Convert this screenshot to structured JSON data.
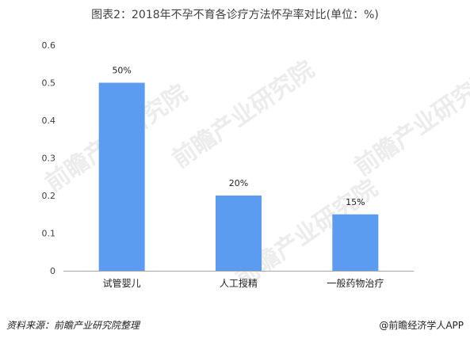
{
  "title": "图表2：2018年不孕不育各诊疗方法怀孕率对比(单位：%)",
  "footer": {
    "source": "资料来源：前瞻产业研究院整理",
    "brand": "@前瞻经济学人APP"
  },
  "watermark": {
    "text": "前瞻产业研究院"
  },
  "colors": {
    "bar": "#5b9bf0",
    "axis": "#a6a6a6"
  },
  "chart_data": {
    "type": "bar",
    "categories": [
      "试管婴儿",
      "人工授精",
      "一般药物治疗"
    ],
    "values": [
      0.5,
      0.2,
      0.15
    ],
    "data_labels": [
      "50%",
      "20%",
      "15%"
    ],
    "y_ticks": [
      "0",
      "0.1",
      "0.2",
      "0.3",
      "0.4",
      "0.5",
      "0.6"
    ],
    "ylim": [
      0,
      0.6
    ],
    "grid": false,
    "legend": "none"
  }
}
